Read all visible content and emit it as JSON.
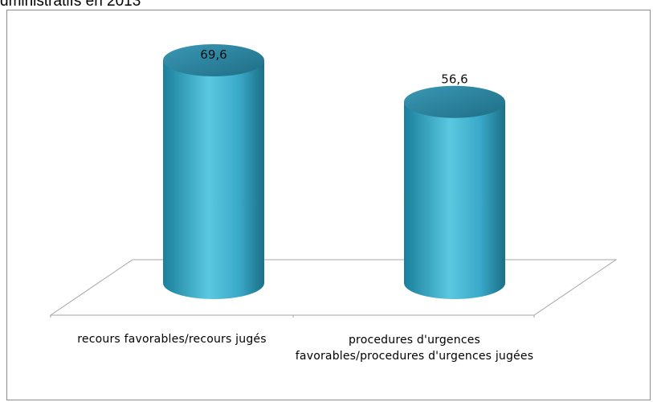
{
  "header": {
    "title_fragment": "dministratifs en 2013"
  },
  "chart_data": {
    "type": "bar",
    "style": "3d-cylinder",
    "categories": [
      "recours favorables/recours jugés",
      "procedures d'urgences favorables/procedures d'urgences jugées"
    ],
    "values": [
      69.6,
      56.6
    ],
    "value_labels": [
      "69,6",
      "56,6"
    ],
    "ylim": [
      0,
      80
    ],
    "grid": false,
    "legend": "none",
    "colors": {
      "bar_light": "#5ac8e0",
      "bar_mid": "#2e9fc0",
      "bar_dark": "#17708a",
      "bar_top": "#2a7e99",
      "floor_line": "#a6a6a6",
      "frame": "#8c8c8c"
    }
  }
}
